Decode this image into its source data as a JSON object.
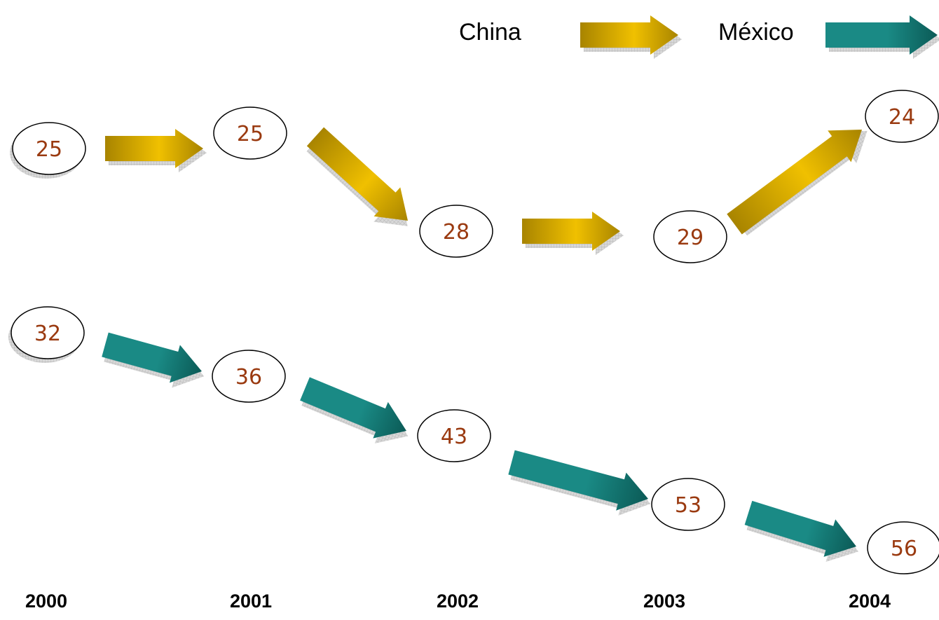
{
  "colors": {
    "china": "#f0c000",
    "china_dark": "#a88400",
    "mexico": "#1a8a85",
    "mexico_dark": "#0b5a56",
    "value_text": "#9a3a10",
    "node_stroke": "#000000"
  },
  "legend": [
    {
      "label": "China",
      "series": "china"
    },
    {
      "label": "México",
      "series": "mexico"
    }
  ],
  "years": [
    "2000",
    "2001",
    "2002",
    "2003",
    "2004"
  ],
  "series": [
    {
      "id": "china",
      "values": [
        "25",
        "25",
        "28",
        "29",
        "24"
      ]
    },
    {
      "id": "mexico",
      "values": [
        "32",
        "36",
        "43",
        "53",
        "56"
      ]
    }
  ]
}
